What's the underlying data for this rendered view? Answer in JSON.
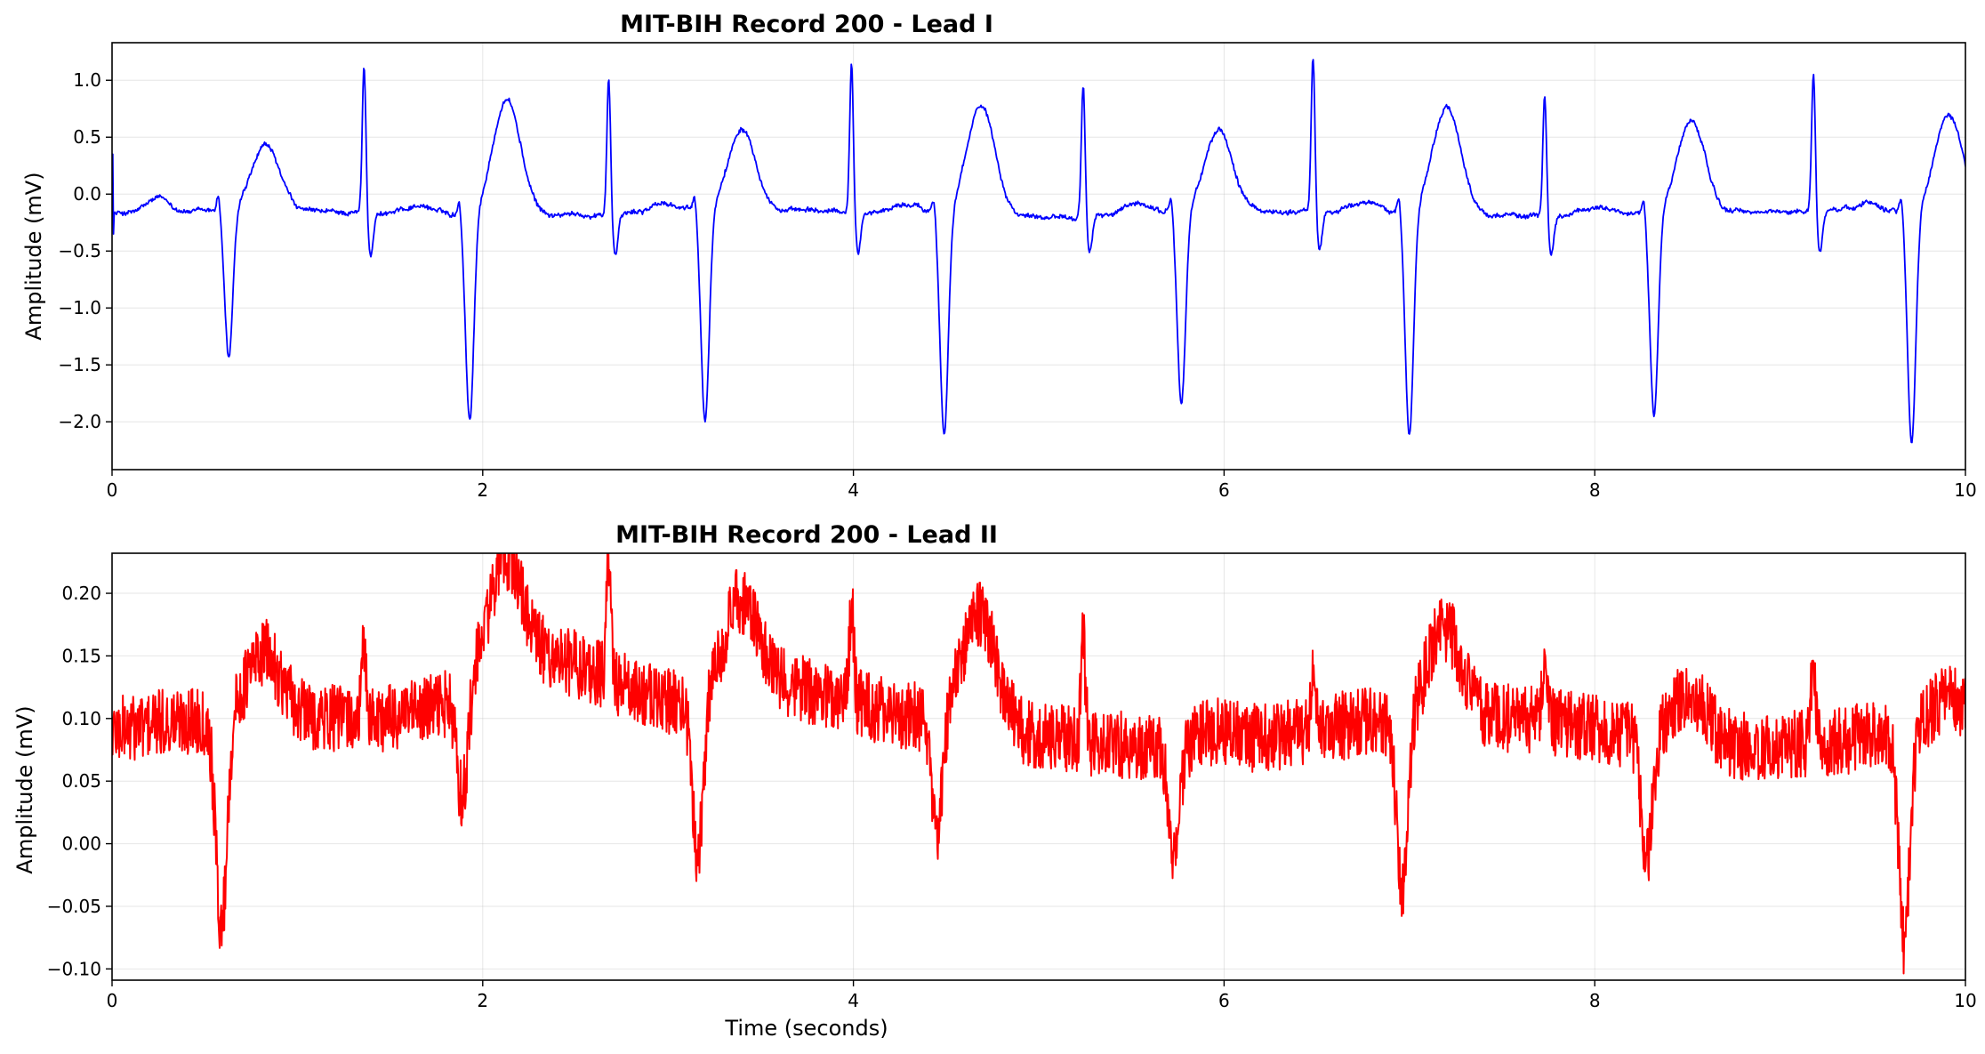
{
  "chart_data": [
    {
      "type": "line",
      "title": "MIT-BIH Record 200 - Lead I",
      "xlabel": "",
      "ylabel": "Amplitude (mV)",
      "xlim": [
        0,
        10
      ],
      "ylim": [
        -2.42,
        1.33
      ],
      "x_ticks": [
        0,
        2,
        4,
        6,
        8,
        10
      ],
      "x_tick_labels": [
        "0",
        "2",
        "4",
        "6",
        "8",
        "10"
      ],
      "y_ticks": [
        1.0,
        0.5,
        0.0,
        -0.5,
        -1.0,
        -1.5,
        -2.0
      ],
      "y_tick_labels": [
        "1.0",
        "0.5",
        "0.0",
        "−0.5",
        "−1.0",
        "−1.5",
        "−2.0"
      ],
      "grid": true,
      "color": "#0000ff",
      "beats": {
        "r_peak_time": [
          1.36,
          2.68,
          3.99,
          5.24,
          6.48,
          7.73,
          9.18
        ],
        "r_peak_amp": [
          1.1,
          1.02,
          1.12,
          0.95,
          1.16,
          0.86,
          1.02
        ],
        "pvc_onset_time": [
          0.59,
          1.89,
          3.16,
          4.45,
          5.73,
          6.96,
          8.28,
          9.67
        ],
        "pvc_trough_amp": [
          -1.5,
          -2.02,
          -2.07,
          -2.14,
          -1.9,
          -2.19,
          -1.97,
          -2.26
        ],
        "pvc_t_wave_amp": [
          0.4,
          0.85,
          0.57,
          0.8,
          0.55,
          0.77,
          0.65,
          0.7
        ]
      }
    },
    {
      "type": "line",
      "title": "MIT-BIH Record 200 - Lead II",
      "xlabel": "Time (seconds)",
      "ylabel": "Amplitude (mV)",
      "xlim": [
        0,
        10
      ],
      "ylim": [
        -0.109,
        0.232
      ],
      "x_ticks": [
        0,
        2,
        4,
        6,
        8,
        10
      ],
      "x_tick_labels": [
        "0",
        "2",
        "4",
        "6",
        "8",
        "10"
      ],
      "y_ticks": [
        0.2,
        0.15,
        0.1,
        0.05,
        0.0,
        -0.05,
        -0.1
      ],
      "y_tick_labels": [
        "0.20",
        "0.15",
        "0.10",
        "0.05",
        "0.00",
        "−0.05",
        "−0.10"
      ],
      "grid": true,
      "color": "#ff0000",
      "beats": {
        "r_peak_time": [
          1.36,
          2.68,
          3.99,
          5.24,
          6.48,
          7.73,
          9.18
        ],
        "r_peak_amp": [
          0.17,
          0.21,
          0.19,
          0.19,
          0.15,
          0.17,
          0.18
        ],
        "pvc_onset_time": [
          0.59,
          1.89,
          3.16,
          4.45,
          5.73,
          6.96,
          8.28,
          9.67
        ],
        "pvc_trough_amp": [
          -0.09,
          -0.005,
          -0.045,
          -0.013,
          -0.004,
          -0.058,
          -0.02,
          -0.09
        ],
        "pvc_t_wave_amp": [
          0.15,
          0.19,
          0.17,
          0.19,
          0.11,
          0.17,
          0.14,
          0.12
        ]
      }
    }
  ]
}
